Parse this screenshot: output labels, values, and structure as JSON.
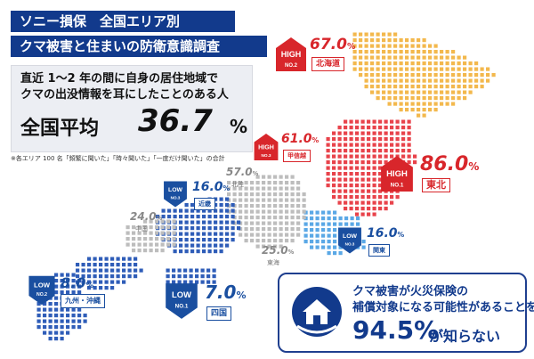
{
  "title": {
    "line1": "ソニー損保　全国エリア別",
    "line2": "クマ被害と住まいの防衛意識調査"
  },
  "intro": {
    "line1": "直近 1～2 年の間に自身の居住地域で",
    "line2": "クマの出没情報を耳にしたことのある人",
    "avg_label": "全国平均",
    "avg_value": "36.7",
    "avg_unit": "%"
  },
  "note": "※各エリア 100 名「頻繁に聞いた」「時々聞いた」「一度だけ聞いた」の合計",
  "regions": {
    "hokkaido": {
      "name": "北海道",
      "value": "67.0",
      "unit": "%",
      "badge": "HIGH",
      "rank": "NO.2"
    },
    "tohoku": {
      "name": "東北",
      "value": "86.0",
      "unit": "%",
      "badge": "HIGH",
      "rank": "NO.1"
    },
    "koshinetsu": {
      "name": "甲信越",
      "value": "61.0",
      "unit": "%",
      "badge": "HIGH",
      "rank": "NO.3"
    },
    "hokuriku": {
      "name": "北陸",
      "value": "57.0",
      "unit": "%"
    },
    "kinki": {
      "name": "近畿",
      "value": "16.0",
      "unit": "%",
      "badge": "LOW",
      "rank": "NO.3"
    },
    "chugoku": {
      "name": "中国",
      "value": "24.0",
      "unit": "%"
    },
    "kanto": {
      "name": "関東",
      "value": "16.0",
      "unit": "%",
      "badge": "LOW",
      "rank": "NO.3"
    },
    "tokai": {
      "name": "東海",
      "value": "25.0",
      "unit": "%"
    },
    "kyushu": {
      "name": "九州・沖縄",
      "value": "8.0",
      "unit": "%",
      "badge": "LOW",
      "rank": "NO.2"
    },
    "shikoku": {
      "name": "四国",
      "value": "7.0",
      "unit": "%",
      "badge": "LOW",
      "rank": "NO.1"
    }
  },
  "callout": {
    "line1": "クマ被害が火災保険の",
    "line2": "補償対象になる可能性があることを",
    "value": "94.5%",
    "tail": "が知らない"
  },
  "colors": {
    "navy": "#123a8c",
    "high_red": "#d8262b",
    "low_blue": "#1a4fa0",
    "hokkaido_orange": "#f3b84d",
    "tohoku_red": "#e8434b",
    "kanto_blue": "#5aa8e6",
    "chubu_gray": "#bdbdbd",
    "west_blue": "#2f5db8"
  },
  "icons": {
    "badge_high": "bear-high-icon",
    "badge_low": "bear-low-icon",
    "callout": "house-shield-icon"
  }
}
